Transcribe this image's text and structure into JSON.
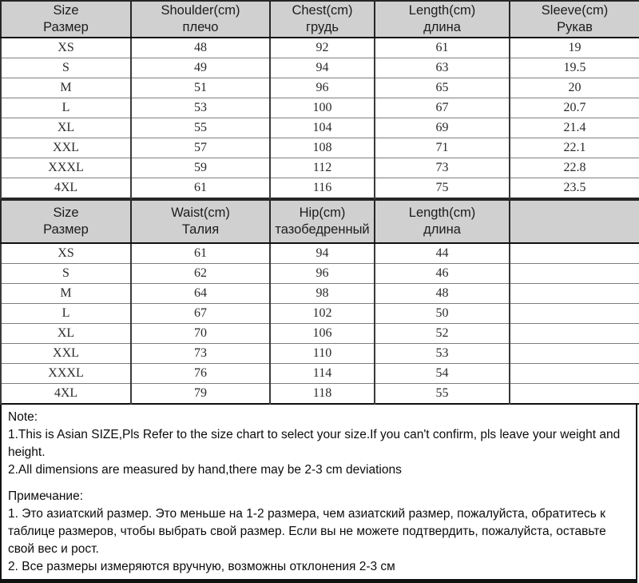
{
  "colors": {
    "header_bg": "#d0d0d0",
    "border_dark": "#262626",
    "row_line": "#7e7e7e",
    "text": "#1c1c1c"
  },
  "table1": {
    "headers": [
      {
        "en": "Size",
        "ru": "Размер"
      },
      {
        "en": "Shoulder(cm)",
        "ru": "плечо"
      },
      {
        "en": "Chest(cm)",
        "ru": "грудь"
      },
      {
        "en": "Length(cm)",
        "ru": "длина"
      },
      {
        "en": "Sleeve(cm)",
        "ru": "Рукав"
      }
    ],
    "rows": [
      [
        "XS",
        "48",
        "92",
        "61",
        "19"
      ],
      [
        "S",
        "49",
        "94",
        "63",
        "19.5"
      ],
      [
        "M",
        "51",
        "96",
        "65",
        "20"
      ],
      [
        "L",
        "53",
        "100",
        "67",
        "20.7"
      ],
      [
        "XL",
        "55",
        "104",
        "69",
        "21.4"
      ],
      [
        "XXL",
        "57",
        "108",
        "71",
        "22.1"
      ],
      [
        "XXXL",
        "59",
        "112",
        "73",
        "22.8"
      ],
      [
        "4XL",
        "61",
        "116",
        "75",
        "23.5"
      ]
    ]
  },
  "table2": {
    "headers": [
      {
        "en": "Size",
        "ru": "Размер"
      },
      {
        "en": "Waist(cm)",
        "ru": "Талия"
      },
      {
        "en": "Hip(cm)",
        "ru": "тазобедренный"
      },
      {
        "en": "Length(cm)",
        "ru": "длина"
      },
      {
        "en": "",
        "ru": ""
      }
    ],
    "rows": [
      [
        "XS",
        "61",
        "94",
        "44",
        ""
      ],
      [
        "S",
        "62",
        "96",
        "46",
        ""
      ],
      [
        "M",
        "64",
        "98",
        "48",
        ""
      ],
      [
        "L",
        "67",
        "102",
        "50",
        ""
      ],
      [
        "XL",
        "70",
        "106",
        "52",
        ""
      ],
      [
        "XXL",
        "73",
        "110",
        "53",
        ""
      ],
      [
        "XXXL",
        "76",
        "114",
        "54",
        ""
      ],
      [
        "4XL",
        "79",
        "118",
        "55",
        ""
      ]
    ]
  },
  "notes": {
    "en_title": "Note:",
    "en_line1": "1.This is Asian SIZE,Pls Refer to the size chart to select your size.If you can't confirm, pls leave your weight and height.",
    "en_line2": "2.All dimensions are measured by hand,there may be 2-3 cm deviations",
    "ru_title": "Примечание:",
    "ru_line1": "1. Это азиатский размер. Это меньше на 1-2 размера, чем азиатский размер, пожалуйста, обратитесь к таблице размеров, чтобы выбрать свой размер. Если вы не можете подтвердить, пожалуйста, оставьте свой вес и рост.",
    "ru_line2": "2. Все размеры измеряются вручную, возможны отклонения 2-3 см"
  }
}
